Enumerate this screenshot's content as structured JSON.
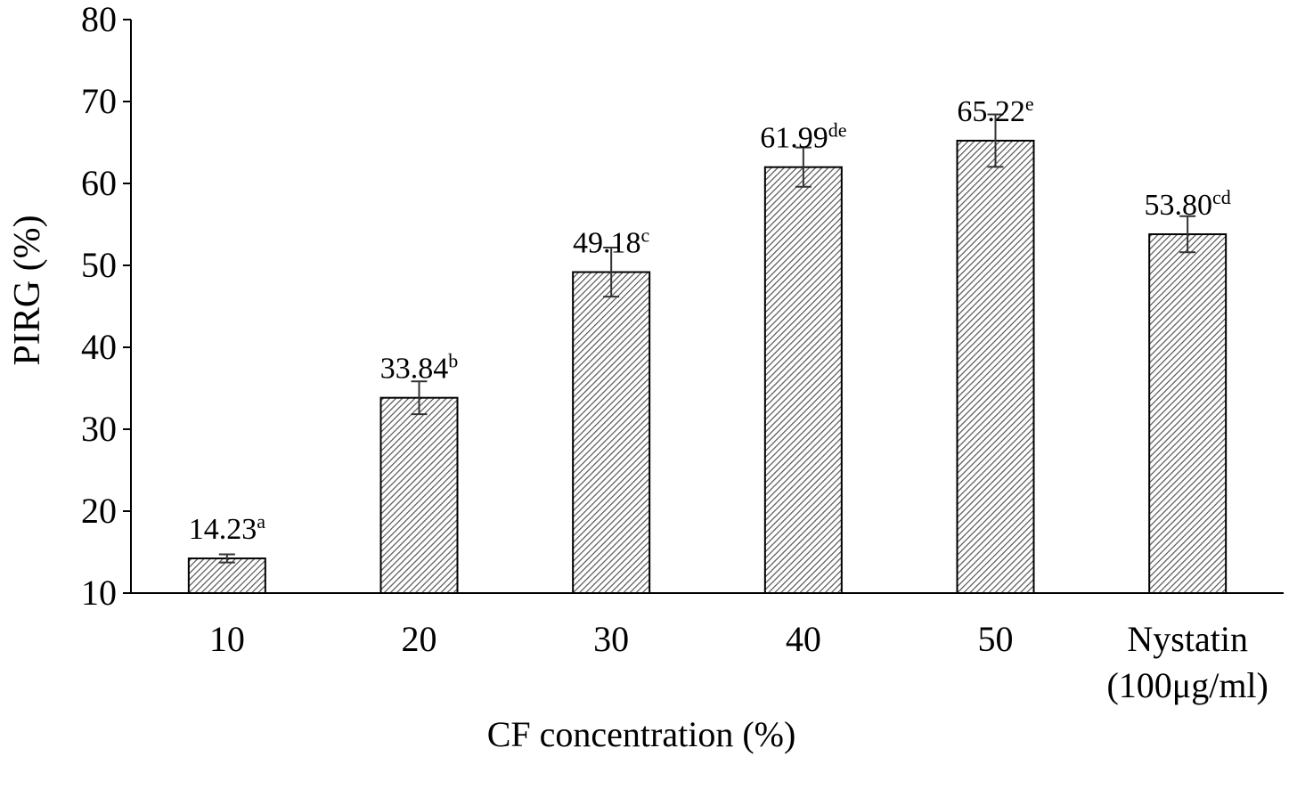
{
  "chart_data": {
    "type": "bar",
    "xlabel": "CF concentration (%)",
    "ylabel": "PIRG (%)",
    "ylim": [
      10,
      80
    ],
    "yticks": [
      "10",
      "20",
      "30",
      "40",
      "50",
      "60",
      "70",
      "80"
    ],
    "grid": false,
    "legend": "none",
    "bar_pattern": "diagonal-hatch",
    "categories": [
      {
        "lines": [
          "10"
        ]
      },
      {
        "lines": [
          "20"
        ]
      },
      {
        "lines": [
          "30"
        ]
      },
      {
        "lines": [
          "40"
        ]
      },
      {
        "lines": [
          "50"
        ]
      },
      {
        "lines": [
          "Nystatin",
          "(100μg/ml)"
        ]
      }
    ],
    "values": [
      14.23,
      33.84,
      49.18,
      61.99,
      65.22,
      53.8
    ],
    "errors": [
      0.5,
      2.0,
      3.0,
      2.4,
      3.2,
      2.2
    ],
    "data_labels": [
      {
        "value": "14.23",
        "sup": "a"
      },
      {
        "value": "33.84",
        "sup": "b"
      },
      {
        "value": "49.18",
        "sup": "c"
      },
      {
        "value": "61.99",
        "sup": "de"
      },
      {
        "value": "65.22",
        "sup": "e"
      },
      {
        "value": "53.80",
        "sup": "cd"
      }
    ]
  }
}
